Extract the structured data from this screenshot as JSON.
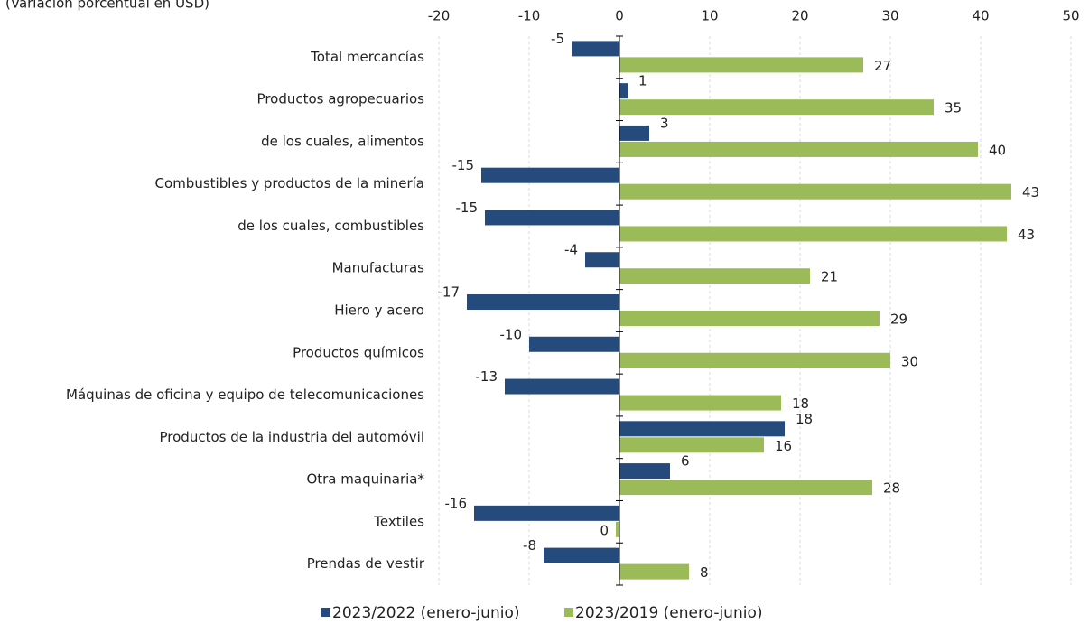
{
  "chart_data": {
    "type": "barh",
    "subtitle": "(Variación porcentual en USD)",
    "categories": [
      "Total mercancías",
      "Productos agropecuarios",
      "de los cuales, alimentos",
      "Combustibles y productos de la minería",
      "de los cuales, combustibles",
      "Manufacturas",
      "Hiero y acero",
      "Productos químicos",
      "Máquinas de oficina y equipo de telecomunicaciones",
      "Productos de la industria del automóvil",
      "Otra maquinaria*",
      "Textiles",
      "Prendas de vestir"
    ],
    "series": [
      {
        "name": "2023/2022 (enero-junio)",
        "color": "#254b7c",
        "values": [
          -5.3,
          0.9,
          3.3,
          -15.3,
          -14.9,
          -3.8,
          -16.9,
          -10.0,
          -12.7,
          18.3,
          5.6,
          -16.1,
          -8.4
        ],
        "value_labels": [
          "-5",
          "1",
          "3",
          "-15",
          "-15",
          "-4",
          "-17",
          "-10",
          "-13",
          "18",
          "6",
          "-16",
          "-8"
        ]
      },
      {
        "name": "2023/2019 (enero-junio)",
        "color": "#9bbb59",
        "values": [
          27.0,
          34.8,
          39.7,
          43.4,
          42.9,
          21.1,
          28.8,
          30.0,
          17.9,
          16.0,
          28.0,
          -0.4,
          7.7
        ],
        "value_labels": [
          "27",
          "35",
          "40",
          "43",
          "43",
          "21",
          "29",
          "30",
          "18",
          "16",
          "28",
          "0",
          "8"
        ]
      }
    ],
    "xlim": [
      -20,
      50
    ],
    "xticks": [
      -20,
      -10,
      0,
      10,
      20,
      30,
      40,
      50
    ],
    "grid": true,
    "legend": "bottom"
  }
}
